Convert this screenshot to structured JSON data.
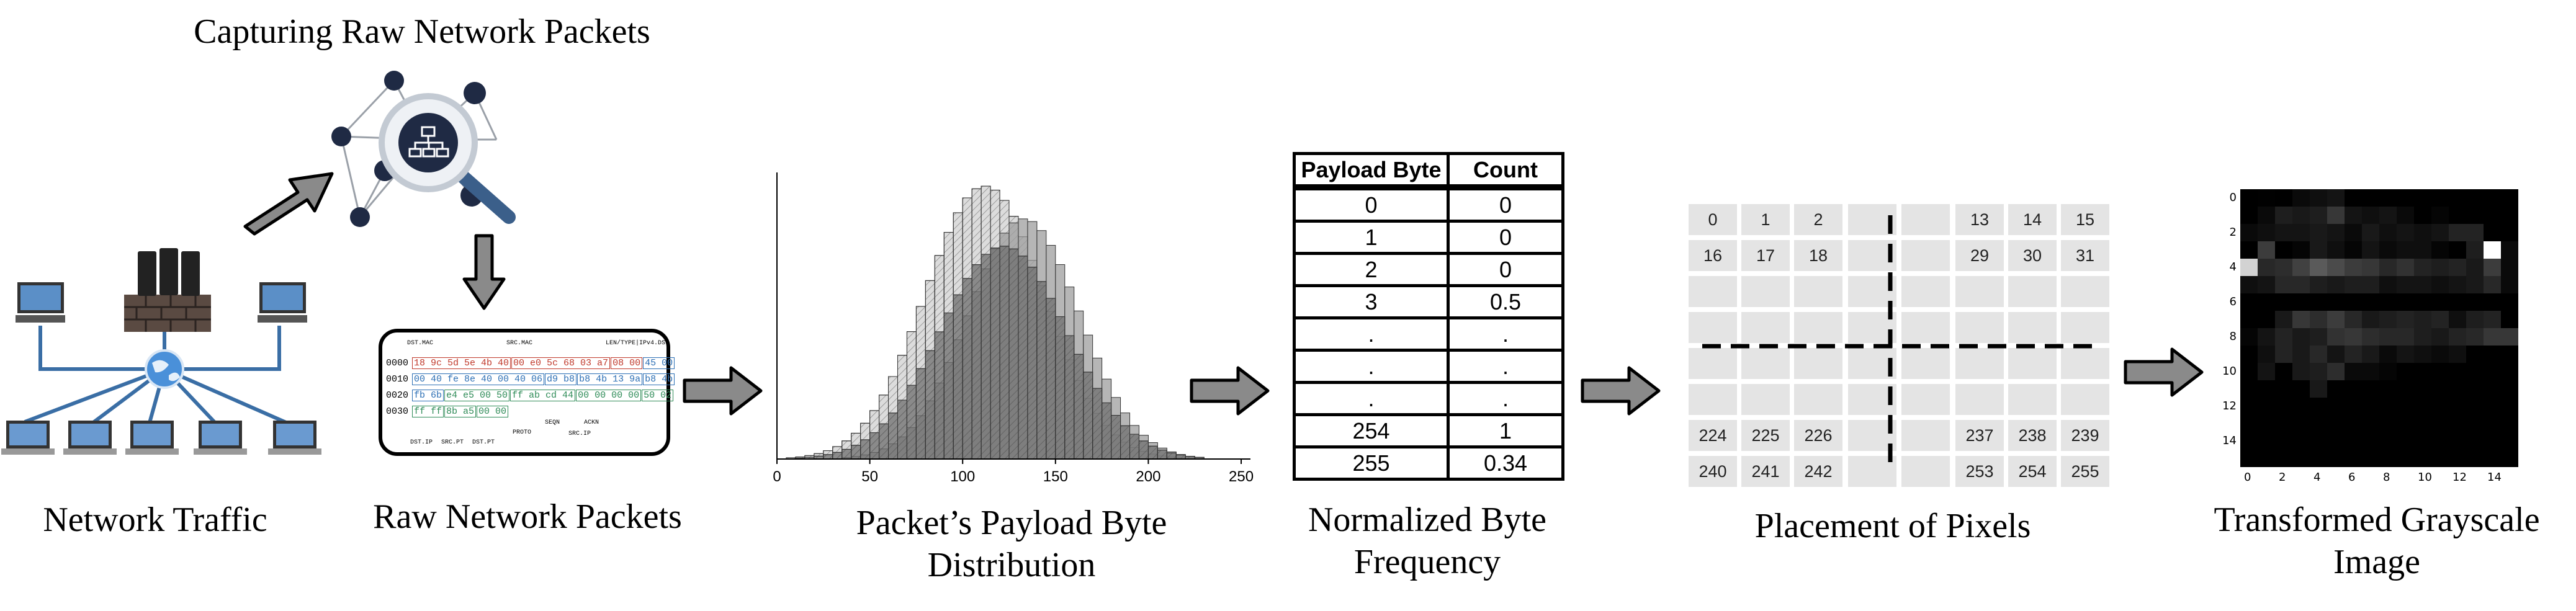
{
  "captions": {
    "network_traffic": "Network Traffic",
    "capturing": "Capturing Raw Network Packets",
    "raw_packets": "Raw Network Packets",
    "distribution_line1": "Packet’s Payload Byte",
    "distribution_line2": "Distribution",
    "normalized_line1": "Normalized Byte",
    "normalized_line2": "Frequency",
    "placement": "Placement of Pixels",
    "transformed_line1": "Transformed Grayscale",
    "transformed_line2": "Image"
  },
  "packets": {
    "labels": {
      "dst_mac": "DST.MAC",
      "src_mac": "SRC.MAC",
      "len_type": "LEN/TYPE|IPv4.DS",
      "dst_ip": "DST.IP",
      "src_pt": "SRC.PT",
      "dst_pt": "DST.PT",
      "proto": "PROTO",
      "seqn": "SEQN",
      "ackn": "ACKN",
      "src_ip": "SRC.IP"
    },
    "rows": [
      {
        "offset": "0000",
        "segs": [
          {
            "t": "18 9c 5d 5e 4b 40",
            "c": "#c0392b"
          },
          {
            "t": "00 e0 5c 68 03 a7",
            "c": "#c0392b"
          },
          {
            "t": "08 00",
            "c": "#c0392b"
          },
          {
            "t": "45 00",
            "c": "#2c6fb5"
          }
        ]
      },
      {
        "offset": "0010",
        "segs": [
          {
            "t": "00 40 fe 8e 40 00 40 06",
            "c": "#2c6fb5"
          },
          {
            "t": "d9 b8",
            "c": "#2c6fb5"
          },
          {
            "t": "b8 4b 13 9a",
            "c": "#2c6fb5"
          },
          {
            "t": "b8 4b",
            "c": "#2c6fb5"
          }
        ]
      },
      {
        "offset": "0020",
        "segs": [
          {
            "t": "fb 6b",
            "c": "#2c6fb5"
          },
          {
            "t": "e4 e5 00 50",
            "c": "#2e8b57"
          },
          {
            "t": "ff ab cd 44",
            "c": "#2e8b57"
          },
          {
            "t": "00 00 00 00",
            "c": "#2e8b57"
          },
          {
            "t": "50 02",
            "c": "#2e8b57"
          }
        ]
      },
      {
        "offset": "0030",
        "segs": [
          {
            "t": "ff ff",
            "c": "#2e8b57"
          },
          {
            "t": "8b a5",
            "c": "#2e8b57"
          },
          {
            "t": "00 00",
            "c": "#2e8b57"
          }
        ]
      }
    ]
  },
  "chart_data": {
    "type": "bar",
    "title": "",
    "xlabel": "",
    "ylabel": "",
    "xlim": [
      0,
      255
    ],
    "xticks": [
      0,
      50,
      100,
      150,
      200,
      250
    ],
    "bin_width": 5,
    "series": [
      {
        "mean": 112,
        "sd": 32,
        "peak": 1.0,
        "fill": "#dcdcdc",
        "hatch": true
      },
      {
        "mean": 133,
        "sd": 30,
        "peak": 0.88,
        "fill": "#9e9e9e",
        "hatch": false
      },
      {
        "mean": 122,
        "sd": 34,
        "peak": 0.78,
        "fill": "#6f6f6f",
        "hatch": true
      }
    ]
  },
  "freq_table": {
    "headers": [
      "Payload Byte",
      "Count"
    ],
    "rows": [
      [
        "0",
        "0"
      ],
      [
        "1",
        "0"
      ],
      [
        "2",
        "0"
      ],
      [
        "3",
        "0.5"
      ],
      [
        ".",
        "."
      ],
      [
        ".",
        "."
      ],
      [
        ".",
        "."
      ],
      [
        "254",
        "1"
      ],
      [
        "255",
        "0.34"
      ]
    ]
  },
  "pixel_grid": {
    "rows": [
      [
        "0",
        "1",
        "2",
        "",
        "",
        "13",
        "14",
        "15"
      ],
      [
        "16",
        "17",
        "18",
        "",
        "",
        "29",
        "30",
        "31"
      ],
      [
        "",
        "",
        "",
        "",
        "",
        "",
        "",
        ""
      ],
      [
        "",
        "",
        "",
        "",
        "",
        "",
        "",
        ""
      ],
      [
        "",
        "",
        "",
        "",
        "",
        "",
        "",
        ""
      ],
      [
        "",
        "",
        "",
        "",
        "",
        "",
        "",
        ""
      ],
      [
        "224",
        "225",
        "226",
        "",
        "",
        "237",
        "238",
        "239"
      ],
      [
        "240",
        "241",
        "242",
        "",
        "",
        "253",
        "254",
        "255"
      ]
    ]
  },
  "gray_image": {
    "size": 16,
    "xticks": [
      "0",
      "2",
      "4",
      "6",
      "8",
      "10",
      "12",
      "14"
    ],
    "yticks": [
      "0",
      "2",
      "4",
      "6",
      "8",
      "10",
      "12",
      "14"
    ],
    "pixels": [
      [
        0,
        1,
        0,
        10,
        15,
        20,
        0,
        0,
        0,
        0,
        0,
        0,
        0,
        0,
        0,
        0
      ],
      [
        0,
        10,
        30,
        25,
        30,
        55,
        20,
        15,
        20,
        10,
        0,
        5,
        0,
        0,
        0,
        0
      ],
      [
        10,
        15,
        20,
        20,
        25,
        20,
        10,
        25,
        15,
        20,
        15,
        20,
        35,
        35,
        0,
        0
      ],
      [
        0,
        60,
        0,
        5,
        25,
        15,
        5,
        20,
        10,
        15,
        15,
        5,
        0,
        30,
        255,
        10
      ],
      [
        210,
        40,
        45,
        65,
        90,
        75,
        60,
        55,
        40,
        50,
        35,
        30,
        35,
        25,
        60,
        10
      ],
      [
        15,
        20,
        40,
        40,
        30,
        25,
        30,
        30,
        15,
        20,
        20,
        15,
        20,
        25,
        40,
        10
      ],
      [
        0,
        0,
        0,
        0,
        0,
        0,
        0,
        0,
        0,
        0,
        0,
        0,
        0,
        0,
        0,
        0
      ],
      [
        0,
        0,
        25,
        55,
        45,
        60,
        40,
        25,
        30,
        35,
        30,
        35,
        15,
        30,
        35,
        0
      ],
      [
        5,
        20,
        35,
        25,
        30,
        50,
        55,
        45,
        40,
        40,
        30,
        25,
        35,
        40,
        55,
        55
      ],
      [
        0,
        15,
        35,
        25,
        40,
        20,
        35,
        25,
        10,
        20,
        15,
        10,
        15,
        0,
        0,
        0
      ],
      [
        0,
        20,
        0,
        25,
        30,
        45,
        10,
        10,
        5,
        0,
        0,
        0,
        0,
        0,
        0,
        0
      ],
      [
        0,
        0,
        0,
        0,
        25,
        0,
        0,
        0,
        0,
        0,
        0,
        0,
        0,
        0,
        0,
        0
      ],
      [
        0,
        0,
        0,
        0,
        0,
        0,
        0,
        0,
        0,
        0,
        0,
        0,
        0,
        0,
        0,
        0
      ],
      [
        0,
        0,
        0,
        0,
        0,
        0,
        0,
        0,
        0,
        0,
        0,
        0,
        0,
        0,
        0,
        0
      ],
      [
        0,
        0,
        0,
        0,
        0,
        0,
        0,
        0,
        0,
        0,
        0,
        0,
        0,
        0,
        0,
        0
      ],
      [
        0,
        0,
        0,
        0,
        0,
        0,
        0,
        0,
        0,
        0,
        0,
        0,
        0,
        0,
        0,
        0
      ]
    ]
  }
}
